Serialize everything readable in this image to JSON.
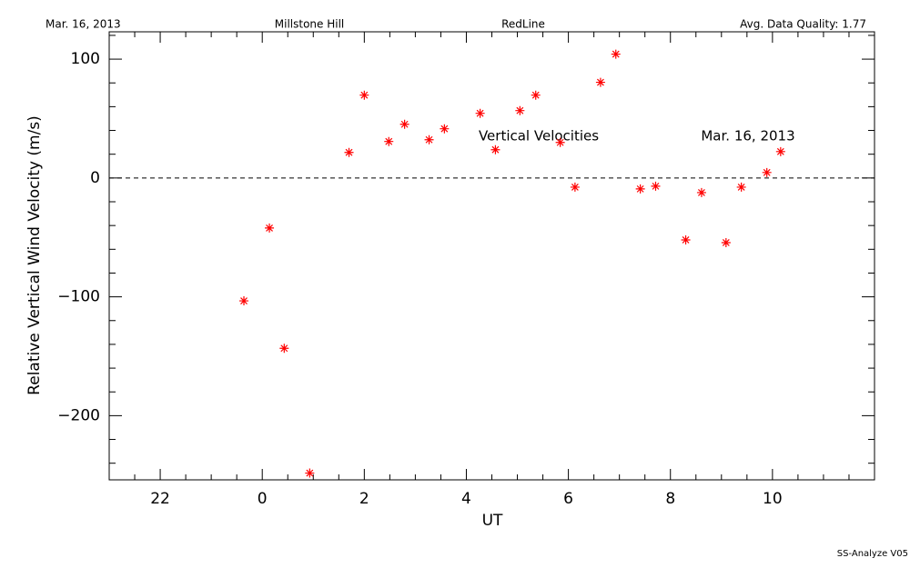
{
  "chart_data": {
    "type": "scatter",
    "header": [
      "Mar. 16, 2013",
      "Millstone Hill",
      "RedLine",
      "Avg. Data Quality: 1.77"
    ],
    "annotations": [
      "Vertical Velocities",
      "Mar. 16, 2013"
    ],
    "footer": "SS-Analyze V05",
    "x_label": "UT",
    "y_label": "Relative Vertical Wind Velocity (m/s)",
    "color": "#ff0000",
    "reference_line": 0,
    "xlim": [
      -3,
      12
    ],
    "ylim": [
      -254,
      123
    ],
    "xticks": [
      {
        "value": -2,
        "label": "22"
      },
      0,
      2,
      4,
      6,
      8,
      10
    ],
    "xminorticks": [
      -2.5,
      -1.5,
      -1,
      -0.5,
      0.5,
      1,
      1.5,
      2.5,
      3,
      3.5,
      4.5,
      5,
      5.5,
      6.5,
      7,
      7.5,
      8.5,
      9,
      9.5,
      10.5,
      11,
      11.5
    ],
    "yticks": [
      {
        "value": -200,
        "label": "−200"
      },
      {
        "value": -100,
        "label": "−100"
      },
      0,
      100
    ],
    "yminorticks": [
      -240,
      -220,
      -180,
      -160,
      -140,
      -120,
      -80,
      -60,
      -40,
      -20,
      20,
      40,
      60,
      80,
      120
    ],
    "x": [
      -0.36,
      0.14,
      0.43,
      0.93,
      1.7,
      2.0,
      2.48,
      2.79,
      3.27,
      3.57,
      4.27,
      4.57,
      5.05,
      5.36,
      5.84,
      6.13,
      6.63,
      6.93,
      7.41,
      7.71,
      8.3,
      8.61,
      9.09,
      9.39,
      9.89,
      10.16
    ],
    "values": [
      -103.4,
      -42.1,
      -143.3,
      -248.3,
      21.5,
      69.7,
      30.7,
      45.2,
      32.2,
      41.4,
      54.4,
      23.8,
      56.7,
      69.7,
      29.9,
      -7.7,
      80.5,
      104.2,
      -9.2,
      -6.9,
      -52.1,
      -12.3,
      -54.4,
      -7.7,
      4.6,
      22.2
    ]
  }
}
